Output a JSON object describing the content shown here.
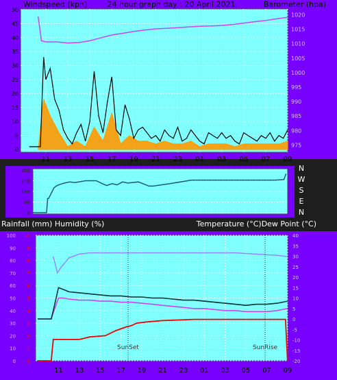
{
  "header": {
    "left": "Windspeed (kph)",
    "center": "24 hour graph day : 20 April 2021",
    "right": "Barometer (hpa)"
  },
  "middle_labels": {
    "left": "Rainfall (mm)  Humidity (%)",
    "right": "Temperature (°C)Dew Point (°C)"
  },
  "direction_letters": [
    "N",
    "W",
    "S",
    "E",
    "N"
  ],
  "colors": {
    "background": "#1e1e1e",
    "axis_band": "#7700ff",
    "plot_bg": "#80ffff",
    "wind_gust": "#000000",
    "wind_avg": "#ff9900",
    "barometer": "#cc44ee",
    "wind_dir": "#1e5a78",
    "temperature": "#003333",
    "dew_point": "#cc44ee",
    "humidity": "#9988ff",
    "rainfall": "#ee0000",
    "axis_red": "#ff0000",
    "axis_light": "#cfc8ff"
  },
  "chart_data": [
    {
      "type": "line",
      "title": "24 hour graph day : 20 April 2021",
      "xlabel": "",
      "x_ticks": [
        "11",
        "13",
        "15",
        "17",
        "19",
        "21",
        "23",
        "01",
        "03",
        "05",
        "07",
        "09"
      ],
      "ylabel_left": "Windspeed (kph)",
      "ylim_left": [
        0,
        50
      ],
      "y_ticks_left": [
        "0",
        "5",
        "10",
        "15",
        "20",
        "25",
        "30",
        "35",
        "40",
        "45",
        "50"
      ],
      "ylabel_right": "Barometer (hpa)",
      "ylim_right": [
        975,
        1020
      ],
      "y_ticks_right": [
        "975",
        "980",
        "985",
        "990",
        "995",
        "1000",
        "1005",
        "1010",
        "1015",
        "1020"
      ],
      "series": [
        {
          "name": "Windspeed gust",
          "axis": "left",
          "x": [
            9.5,
            10.3,
            10.5,
            10.8,
            11.0,
            11.4,
            11.8,
            12.2,
            12.6,
            13.0,
            13.4,
            13.8,
            14.2,
            14.6,
            15.0,
            15.4,
            15.8,
            16.2,
            16.6,
            17.0,
            17.4,
            17.8,
            18.2,
            18.6,
            19.0,
            19.4,
            19.8,
            20.2,
            20.6,
            21.0,
            21.4,
            21.8,
            22.2,
            22.6,
            23.0,
            23.4,
            23.8,
            24.2,
            24.6,
            25.0,
            25.4,
            25.8,
            26.2,
            26.6,
            27.0,
            27.4,
            27.8,
            28.2,
            28.6,
            29.0,
            29.4,
            29.8,
            30.2,
            30.6,
            31.0,
            31.4,
            31.8,
            32.2,
            32.6,
            33.0
          ],
          "values": [
            1,
            1,
            1,
            33,
            25,
            29,
            18,
            14,
            7,
            4,
            2,
            6,
            9,
            3,
            10,
            28,
            12,
            6,
            17,
            26,
            7,
            5,
            16,
            11,
            4,
            7,
            8,
            6,
            4,
            5,
            3,
            7,
            5,
            4,
            8,
            3,
            4,
            7,
            5,
            3,
            2,
            6,
            5,
            4,
            6,
            4,
            5,
            3,
            2,
            6,
            5,
            4,
            3,
            5,
            4,
            6,
            3,
            5,
            4,
            7
          ]
        },
        {
          "name": "Windspeed average",
          "axis": "left",
          "x": [
            10.3,
            10.8,
            11.4,
            12.2,
            13.0,
            13.8,
            14.6,
            15.4,
            16.2,
            17.0,
            17.8,
            18.6,
            19.4,
            20.2,
            21.0,
            21.8,
            22.6,
            23.4,
            24.2,
            25.0,
            25.8,
            26.6,
            27.4,
            28.2,
            29.0,
            29.8,
            30.6,
            31.4,
            32.2,
            33.0
          ],
          "values": [
            0,
            18,
            12,
            6,
            1,
            3,
            1,
            8,
            3,
            13,
            2,
            5,
            3,
            3,
            2,
            3,
            2,
            2,
            3,
            1,
            2,
            2,
            2,
            1,
            2,
            2,
            2,
            2,
            2,
            3
          ]
        },
        {
          "name": "Barometer",
          "axis": "right",
          "x": [
            10.3,
            10.6,
            11.0,
            12.0,
            13.0,
            14.0,
            15.0,
            16.0,
            17.0,
            18.0,
            19.0,
            20.0,
            21.0,
            22.0,
            23.0,
            24.0,
            25.0,
            26.0,
            27.0,
            28.0,
            29.0,
            30.0,
            31.0,
            32.0,
            33.0
          ],
          "values": [
            1019.4,
            1011.0,
            1010.6,
            1010.6,
            1010.2,
            1010.4,
            1011.0,
            1012.0,
            1013.0,
            1013.6,
            1014.2,
            1014.7,
            1015.1,
            1015.3,
            1015.5,
            1015.8,
            1016.0,
            1016.1,
            1016.3,
            1016.6,
            1017.1,
            1017.6,
            1018.0,
            1018.6,
            1019.1
          ]
        }
      ]
    },
    {
      "type": "line",
      "title": "",
      "ylim": [
        0,
        360
      ],
      "y_ticks": [
        "0",
        "90",
        "180",
        "270",
        "360"
      ],
      "direction_labels": [
        "N",
        "W",
        "S",
        "E",
        "N"
      ],
      "series": [
        {
          "name": "Wind direction",
          "x": [
            9.0,
            10.3,
            10.4,
            10.5,
            11.0,
            11.3,
            11.6,
            12.0,
            12.5,
            13.0,
            14.0,
            15.0,
            15.6,
            16.0,
            16.5,
            17.0,
            17.5,
            18.0,
            19.0,
            20.0,
            20.4,
            22.0,
            24.0,
            26.0,
            28.0,
            30.0,
            32.0,
            32.8,
            33.0
          ],
          "values": [
            0,
            0,
            120,
            120,
            210,
            230,
            240,
            250,
            260,
            255,
            270,
            270,
            245,
            230,
            245,
            235,
            260,
            250,
            260,
            225,
            225,
            245,
            275,
            275,
            275,
            275,
            275,
            280,
            330
          ]
        }
      ]
    },
    {
      "type": "line",
      "title": "",
      "x_ticks": [
        "11",
        "13",
        "15",
        "17",
        "19",
        "21",
        "23",
        "01",
        "03",
        "05",
        "07",
        "09"
      ],
      "annotations": [
        "SunSet",
        "SunRise"
      ],
      "ylabel_left_outer": "Humidity (%)",
      "ylim_left_outer": [
        0,
        100
      ],
      "y_ticks_left_outer": [
        "0",
        "10",
        "20",
        "30",
        "40",
        "50",
        "60",
        "70",
        "80",
        "90",
        "100"
      ],
      "ylabel_left_inner": "Rainfall (mm)",
      "ylim_left_inner": [
        0,
        10
      ],
      "y_ticks_left_inner": [
        "0",
        "1",
        "2",
        "3",
        "4",
        "5",
        "6",
        "7",
        "8",
        "9",
        "10"
      ],
      "ylabel_right": "Temperature (°C) / Dew Point (°C)",
      "ylim_right": [
        -20,
        40
      ],
      "y_ticks_right": [
        "-20",
        "-15",
        "-10",
        "-5",
        "0",
        "5",
        "10",
        "15",
        "20",
        "25",
        "30",
        "35",
        "40"
      ],
      "series": [
        {
          "name": "Humidity",
          "axis": "left_outer",
          "x": [
            10.5,
            10.9,
            11.2,
            11.6,
            12.0,
            13.0,
            14.0,
            15.0,
            16.0,
            17.0,
            20.0,
            24.0,
            28.0,
            30.0,
            32.0,
            33.0
          ],
          "values": [
            83,
            70,
            74,
            78,
            82,
            85,
            86,
            86,
            86,
            86,
            86,
            86,
            86,
            85,
            84,
            83
          ]
        },
        {
          "name": "Rainfall",
          "axis": "left_inner",
          "x": [
            9.0,
            10.3,
            10.5,
            13.0,
            13.5,
            14.0,
            15.5,
            16.5,
            17.5,
            18.0,
            18.5,
            19.5,
            21.0,
            24.0,
            27.0,
            29.0,
            31.0,
            32.8,
            33.0
          ],
          "values": [
            0,
            0,
            1.7,
            1.7,
            1.8,
            1.9,
            2.0,
            2.4,
            2.7,
            2.8,
            3.0,
            3.1,
            3.2,
            3.3,
            3.3,
            3.3,
            3.3,
            3.3,
            0
          ]
        },
        {
          "name": "Temperature",
          "axis": "right",
          "x": [
            9.0,
            10.3,
            10.5,
            11.0,
            11.5,
            12.0,
            13.0,
            14.0,
            15.0,
            16.0,
            17.0,
            18.0,
            19.0,
            20.0,
            21.0,
            22.0,
            23.0,
            24.0,
            25.0,
            26.0,
            27.0,
            28.0,
            29.0,
            30.0,
            31.0,
            32.0,
            33.0
          ],
          "values": [
            0,
            0,
            4,
            15,
            14,
            13,
            12.5,
            12,
            11.5,
            11,
            11,
            10.5,
            10.5,
            10,
            10,
            9.5,
            9,
            9,
            8.5,
            8,
            7.5,
            7,
            6.5,
            7,
            7,
            7.5,
            8.5
          ]
        },
        {
          "name": "Dew Point",
          "axis": "right",
          "x": [
            9.0,
            10.3,
            10.5,
            11.0,
            11.5,
            12.0,
            13.0,
            14.0,
            15.0,
            16.0,
            17.0,
            18.0,
            19.0,
            20.0,
            21.0,
            22.0,
            23.0,
            24.0,
            25.0,
            26.0,
            27.0,
            28.0,
            29.0,
            30.0,
            31.0,
            32.0,
            33.0
          ],
          "values": [
            0,
            0,
            3,
            10,
            10,
            9.5,
            9,
            9,
            8.5,
            8.5,
            8,
            8,
            7.5,
            7,
            6.5,
            6,
            5.5,
            5,
            5,
            4.5,
            4,
            4,
            3.5,
            3.5,
            3.5,
            4,
            5
          ]
        }
      ]
    }
  ]
}
